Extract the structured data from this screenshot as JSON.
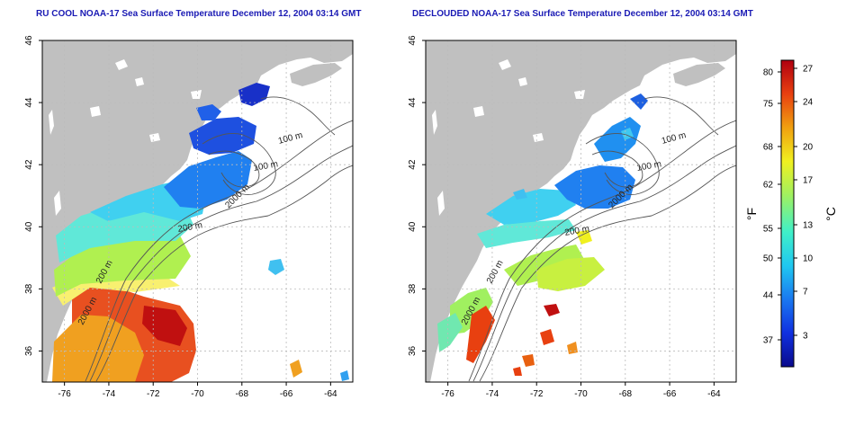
{
  "maps": [
    {
      "title": "RU COOL NOAA-17 Sea Surface Temperature December 12, 2004 03:14 GMT",
      "x_ticks": [
        "-76",
        "-74",
        "-72",
        "-70",
        "-68",
        "-66",
        "-64"
      ],
      "y_ticks": [
        "36",
        "38",
        "40",
        "42",
        "44",
        "46"
      ],
      "contour_labels": [
        "100 m",
        "100 m",
        "200 m",
        "200 m",
        "2000 m",
        "2000 m"
      ]
    },
    {
      "title": "DECLOUDED NOAA-17 Sea Surface Temperature December 12, 2004 03:14 GMT",
      "x_ticks": [
        "-76",
        "-74",
        "-72",
        "-70",
        "-68",
        "-66",
        "-64"
      ],
      "y_ticks": [
        "36",
        "38",
        "40",
        "42",
        "44",
        "46"
      ],
      "contour_labels": [
        "100 m",
        "100 m",
        "200 m",
        "200 m",
        "2000 m",
        "2000 m"
      ]
    }
  ],
  "colorbar": {
    "fahrenheit_label": "°F",
    "celsius_label": "°C",
    "fahrenheit_ticks": [
      "80",
      "75",
      "68",
      "62",
      "55",
      "50",
      "44",
      "37"
    ],
    "celsius_ticks": [
      "27",
      "24",
      "20",
      "17",
      "13",
      "10",
      "7",
      "3"
    ],
    "colors": [
      "#0a0a8c",
      "#1030e0",
      "#1a78f0",
      "#20c8f0",
      "#40f0c8",
      "#a0f060",
      "#f0f020",
      "#f0a010",
      "#e84010",
      "#b00010"
    ]
  },
  "colors": {
    "land": "#c0c0c0",
    "title": "#1a1ab4",
    "grid": "#bbbbbb"
  }
}
